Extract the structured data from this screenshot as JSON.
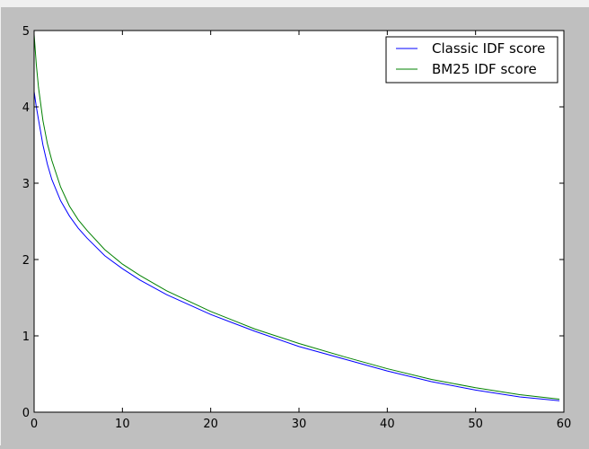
{
  "chart_data": {
    "type": "line",
    "title": "",
    "xlabel": "",
    "ylabel": "",
    "xlim": [
      0,
      60
    ],
    "ylim": [
      0,
      5
    ],
    "xticks": [
      0,
      10,
      20,
      30,
      40,
      50,
      60
    ],
    "yticks": [
      0,
      1,
      2,
      3,
      4,
      5
    ],
    "xtick_labels": [
      "0",
      "10",
      "20",
      "30",
      "40",
      "50",
      "60"
    ],
    "ytick_labels": [
      "0",
      "1",
      "2",
      "3",
      "4",
      "5"
    ],
    "grid": false,
    "legend_position": "top-right",
    "background_color": "#bfbfbf",
    "plot_background_color": "#ffffff",
    "series": [
      {
        "name": "Classic IDF score",
        "color": "#0000ff",
        "x": [
          0,
          0.25,
          0.5,
          1,
          1.5,
          2,
          3,
          4,
          5,
          6,
          8,
          10,
          12,
          15,
          20,
          25,
          30,
          35,
          40,
          45,
          50,
          55,
          59.5
        ],
        "y": [
          4.2,
          4.0,
          3.83,
          3.5,
          3.25,
          3.05,
          2.77,
          2.57,
          2.41,
          2.28,
          2.05,
          1.88,
          1.73,
          1.54,
          1.28,
          1.06,
          0.86,
          0.7,
          0.54,
          0.4,
          0.29,
          0.2,
          0.15
        ]
      },
      {
        "name": "BM25 IDF score",
        "color": "#008000",
        "x": [
          0,
          0.25,
          0.5,
          1,
          1.5,
          2,
          3,
          4,
          5,
          6,
          8,
          10,
          12,
          15,
          20,
          25,
          30,
          35,
          40,
          45,
          50,
          55,
          59.5
        ],
        "y": [
          4.95,
          4.55,
          4.25,
          3.82,
          3.52,
          3.3,
          2.95,
          2.7,
          2.52,
          2.38,
          2.13,
          1.94,
          1.79,
          1.59,
          1.32,
          1.09,
          0.9,
          0.73,
          0.57,
          0.43,
          0.32,
          0.23,
          0.17
        ]
      }
    ]
  }
}
